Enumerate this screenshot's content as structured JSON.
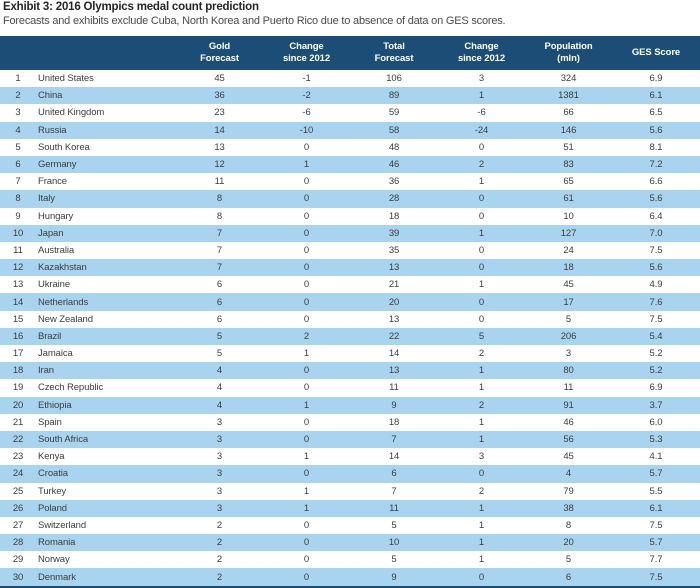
{
  "title": "Exhibit 3: 2016 Olympics medal count prediction",
  "subtitle": "Forecasts and exhibits exclude Cuba, North Korea and Puerto Rico due to absence of data on GES scores.",
  "colors": {
    "header_bg": "#1c4d76",
    "header_text": "#ffffff",
    "row_alt": "#a8d4ef",
    "body_text": "#3d3d3d"
  },
  "table": {
    "row_fields": [
      "rank",
      "country",
      "gold_forecast",
      "gold_change_since_2012",
      "total_forecast",
      "total_change_since_2012",
      "population_mln",
      "ges_score"
    ],
    "columns": [
      {
        "id": "gold_forecast",
        "lines": [
          "Gold",
          "Forecast"
        ]
      },
      {
        "id": "gold_change_since_2012",
        "lines": [
          "Change",
          "since 2012"
        ]
      },
      {
        "id": "total_forecast",
        "lines": [
          "Total",
          "Forecast"
        ]
      },
      {
        "id": "total_change_since_2012",
        "lines": [
          "Change",
          "since 2012"
        ]
      },
      {
        "id": "population_mln",
        "lines": [
          "Population",
          "(mln)"
        ]
      },
      {
        "id": "ges_score",
        "lines": [
          "GES Score"
        ]
      }
    ],
    "rows": [
      [
        "1",
        "United States",
        "45",
        "-1",
        "106",
        "3",
        "324",
        "6.9"
      ],
      [
        "2",
        "China",
        "36",
        "-2",
        "89",
        "1",
        "1381",
        "6.1"
      ],
      [
        "3",
        "United Kingdom",
        "23",
        "-6",
        "59",
        "-6",
        "66",
        "6.5"
      ],
      [
        "4",
        "Russia",
        "14",
        "-10",
        "58",
        "-24",
        "146",
        "5.6"
      ],
      [
        "5",
        "South Korea",
        "13",
        "0",
        "48",
        "0",
        "51",
        "8.1"
      ],
      [
        "6",
        "Germany",
        "12",
        "1",
        "46",
        "2",
        "83",
        "7.2"
      ],
      [
        "7",
        "France",
        "11",
        "0",
        "36",
        "1",
        "65",
        "6.6"
      ],
      [
        "8",
        "Italy",
        "8",
        "0",
        "28",
        "0",
        "61",
        "5.6"
      ],
      [
        "9",
        "Hungary",
        "8",
        "0",
        "18",
        "0",
        "10",
        "6.4"
      ],
      [
        "10",
        "Japan",
        "7",
        "0",
        "39",
        "1",
        "127",
        "7.0"
      ],
      [
        "11",
        "Australia",
        "7",
        "0",
        "35",
        "0",
        "24",
        "7.5"
      ],
      [
        "12",
        "Kazakhstan",
        "7",
        "0",
        "13",
        "0",
        "18",
        "5.6"
      ],
      [
        "13",
        "Ukraine",
        "6",
        "0",
        "21",
        "1",
        "45",
        "4.9"
      ],
      [
        "14",
        "Netherlands",
        "6",
        "0",
        "20",
        "0",
        "17",
        "7.6"
      ],
      [
        "15",
        "New Zealand",
        "6",
        "0",
        "13",
        "0",
        "5",
        "7.5"
      ],
      [
        "16",
        "Brazil",
        "5",
        "2",
        "22",
        "5",
        "206",
        "5.4"
      ],
      [
        "17",
        "Jamaica",
        "5",
        "1",
        "14",
        "2",
        "3",
        "5.2"
      ],
      [
        "18",
        "Iran",
        "4",
        "0",
        "13",
        "1",
        "80",
        "5.2"
      ],
      [
        "19",
        "Czech Republic",
        "4",
        "0",
        "11",
        "1",
        "11",
        "6.9"
      ],
      [
        "20",
        "Ethiopia",
        "4",
        "1",
        "9",
        "2",
        "91",
        "3.7"
      ],
      [
        "21",
        "Spain",
        "3",
        "0",
        "18",
        "1",
        "46",
        "6.0"
      ],
      [
        "22",
        "South Africa",
        "3",
        "0",
        "7",
        "1",
        "56",
        "5.3"
      ],
      [
        "23",
        "Kenya",
        "3",
        "1",
        "14",
        "3",
        "45",
        "4.1"
      ],
      [
        "24",
        "Croatia",
        "3",
        "0",
        "6",
        "0",
        "4",
        "5.7"
      ],
      [
        "25",
        "Turkey",
        "3",
        "1",
        "7",
        "2",
        "79",
        "5.5"
      ],
      [
        "26",
        "Poland",
        "3",
        "1",
        "11",
        "1",
        "38",
        "6.1"
      ],
      [
        "27",
        "Switzerland",
        "2",
        "0",
        "5",
        "1",
        "8",
        "7.5"
      ],
      [
        "28",
        "Romania",
        "2",
        "0",
        "10",
        "1",
        "20",
        "5.7"
      ],
      [
        "29",
        "Norway",
        "2",
        "0",
        "5",
        "1",
        "5",
        "7.7"
      ],
      [
        "30",
        "Denmark",
        "2",
        "0",
        "9",
        "0",
        "6",
        "7.5"
      ]
    ]
  }
}
